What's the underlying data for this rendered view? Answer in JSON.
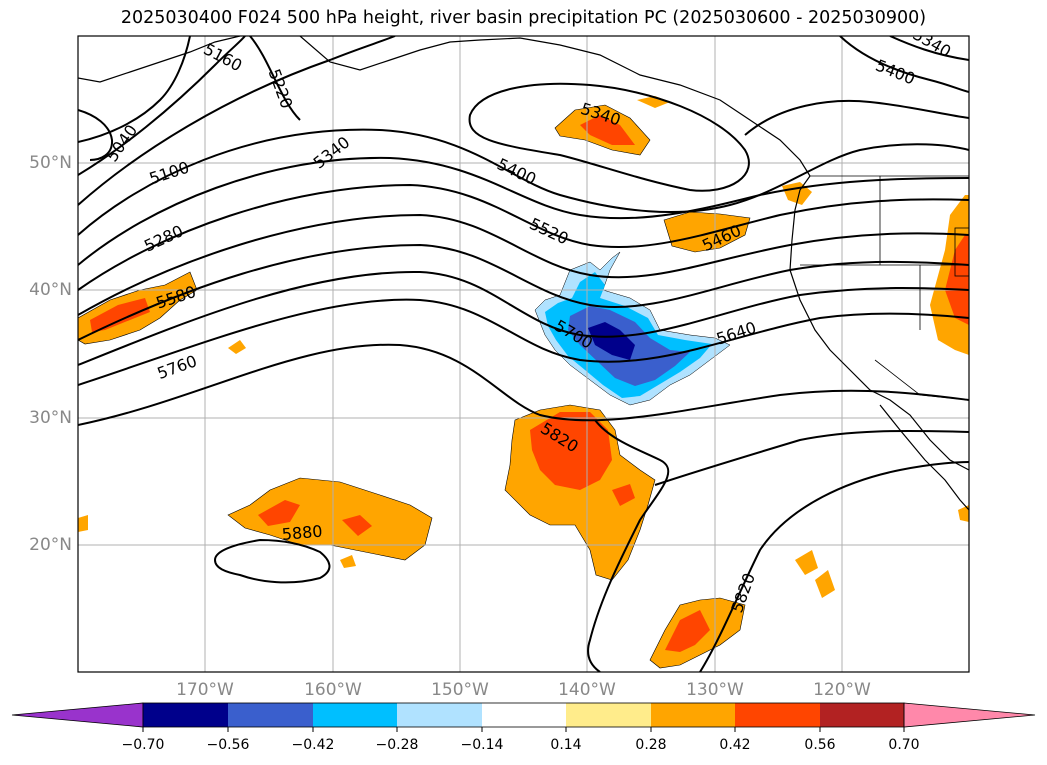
{
  "title": "2025030400 F024 500 hPa height, river basin precipitation PC (2025030600 - 2025030900)",
  "lat_labels": [
    "50°N",
    "40°N",
    "30°N",
    "20°N"
  ],
  "lon_labels": [
    "170°W",
    "160°W",
    "150°W",
    "140°W",
    "130°W",
    "120°W"
  ],
  "height_contour_labels": [
    "5040",
    "5100",
    "5160",
    "5220",
    "5280",
    "5340",
    "5400",
    "5460",
    "5520",
    "5580",
    "5640",
    "5700",
    "5760",
    "5820",
    "5880",
    "5340",
    "5400",
    "5340",
    "5820"
  ],
  "colorbar": {
    "ticks": [
      "−0.70",
      "−0.56",
      "−0.42",
      "−0.28",
      "−0.14",
      "0.14",
      "0.28",
      "0.42",
      "0.56",
      "0.70"
    ],
    "colors": {
      "under": "#9933cc",
      "bins": [
        "#00008b",
        "#3a5fcd",
        "#00bfff",
        "#b0e2ff",
        "#ffffff",
        "#ffec8b",
        "#ffa500",
        "#ff4500",
        "#b22222"
      ],
      "over": "#ff88aa"
    }
  },
  "colors": {
    "contour": "#000000",
    "coast": "#000000",
    "grid": "#b0b0b0",
    "tick_label": "#888888"
  }
}
